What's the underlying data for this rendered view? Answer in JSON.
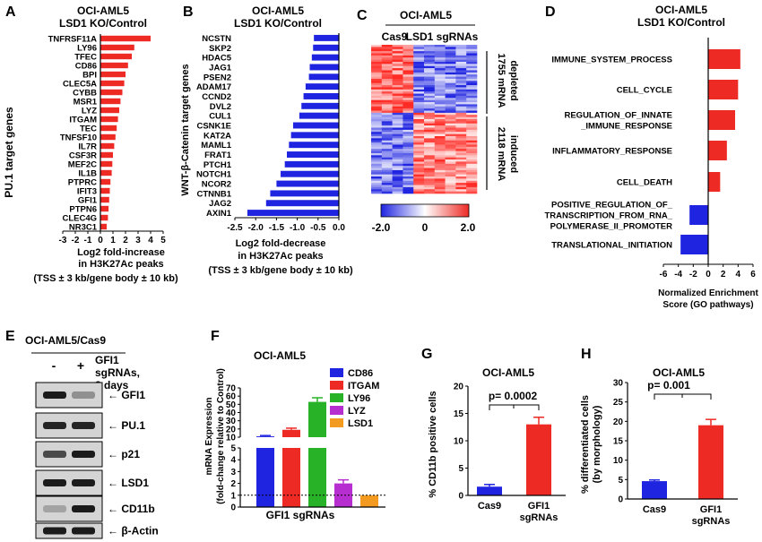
{
  "panel_letters": {
    "A": "A",
    "B": "B",
    "C": "C",
    "D": "D",
    "E": "E",
    "F": "F",
    "G": "G",
    "H": "H"
  },
  "colors": {
    "red": "#ee2a24",
    "blue": "#1f24e0",
    "green": "#27b227",
    "purple": "#b72ed0",
    "orange": "#f39a21",
    "black": "#000000"
  },
  "panelA": {
    "title1": "OCI-AML5",
    "title2": "LSD1 KO/Control",
    "ylabel": "PU.1 target genes",
    "xlabel1": "Log2 fold-increase",
    "xlabel2": "in H3K27Ac peaks",
    "xlabel3": "(TSS ± 3 kb/gene body ± 10 kb)",
    "ticks": [
      "-3",
      "-2",
      "-1",
      "0",
      "1",
      "2",
      "3",
      "4",
      "5"
    ]
  },
  "panelB": {
    "title1": "OCI-AML5",
    "title2": "LSD1 KO/Control",
    "ylabel": "WNT-β-Catenin target genes",
    "xlabel1": "Log2 fold-decrease",
    "xlabel2": "in H3K27Ac peaks",
    "xlabel3": "(TSS ± 3 kb/gene body ± 10 kb)",
    "ticks": [
      "-2.5",
      "-2.0",
      "-1.5",
      "-1.0",
      "-0.5",
      "0.0"
    ]
  },
  "panelC": {
    "title": "OCI-AML5",
    "col1": "Cas9",
    "col2": "LSD1 sgRNAs",
    "right1": "1755 mRNA",
    "right1b": "depleted",
    "right2": "2118 mRNA",
    "right2b": "induced",
    "scale_min": "-2.0",
    "scale_mid": "0",
    "scale_max": "2.0"
  },
  "panelD": {
    "title1": "OCI-AML5",
    "title2": "LSD1 KO/Control",
    "xlabel1": "Normalized Enrichment",
    "xlabel2": "Score (GO pathways)",
    "ticks": [
      "-6",
      "-4",
      "-2",
      "0",
      "2",
      "4",
      "6"
    ],
    "labels": [
      [
        "IMMUNE_SYSTEM_PROCESS"
      ],
      [
        "CELL_CYCLE"
      ],
      [
        "REGULATION_OF_INNATE",
        "_IMMUNE_RESPONSE"
      ],
      [
        "INFLAMMATORY_RESPONSE"
      ],
      [
        "CELL_DEATH"
      ],
      [
        "POSITIVE_REGULATION_OF_",
        "TRANSCRIPTION_FROM_RNA_",
        "POLYMERASE_II_PROMOTER"
      ],
      [
        "TRANSLATIONAL_INITIATION"
      ]
    ]
  },
  "panelE": {
    "title": "OCI-AML5/Cas9",
    "minus": "-",
    "plus": "+",
    "cond1": "GFI1",
    "cond2": "sgRNAs,",
    "cond3": "8 days",
    "bands": [
      "GFI1",
      "PU.1",
      "p21",
      "LSD1",
      "CD11b",
      "β-Actin"
    ]
  },
  "panelF": {
    "title": "OCI-AML5",
    "ylabel1": "mRNA Expression",
    "ylabel2": "(fold-change relative to Control)",
    "xlabel": "GFI1 sgRNAs",
    "ticks_top": [
      "10",
      "20",
      "30",
      "40",
      "50",
      "60",
      "70"
    ],
    "ticks_bottom": [
      "0",
      "1",
      "2",
      "3",
      "4",
      "5"
    ],
    "legend": [
      "CD86",
      "ITGAM",
      "LY96",
      "LYZ",
      "LSD1"
    ]
  },
  "panelG": {
    "title": "OCI-AML5",
    "ylabel": "% CD11b positive cells",
    "pval": "p= 0.0002",
    "ticks": [
      "0",
      "5",
      "10",
      "15",
      "20"
    ],
    "cat1": "Cas9",
    "cat2a": "GFI1",
    "cat2b": "sgRNAs"
  },
  "panelH": {
    "title": "OCI-AML5",
    "ylabel1": "% differentiated cells",
    "ylabel2": "(by morphology)",
    "pval": "p= 0.001",
    "ticks": [
      "0",
      "5",
      "10",
      "15",
      "20",
      "25",
      "30"
    ],
    "cat1": "Cas9",
    "cat2a": "GFI1",
    "cat2b": "sgRNAs"
  },
  "chart_data": [
    {
      "type": "bar",
      "panel": "A",
      "orientation": "horizontal",
      "categories": [
        "TNFRSF11A",
        "LY96",
        "TFEC",
        "CD86",
        "BPI",
        "CLEC5A",
        "CYBB",
        "MSR1",
        "LYZ",
        "ITGAM",
        "TEC",
        "TNFSF10",
        "IL7R",
        "CSF3R",
        "MEF2C",
        "IL1B",
        "PTPRC",
        "IFIT3",
        "GFI1",
        "PTPN6",
        "CLEC4G",
        "NR3C1"
      ],
      "values": [
        4.0,
        2.7,
        2.5,
        2.2,
        2.0,
        1.9,
        1.75,
        1.6,
        1.5,
        1.4,
        1.3,
        1.2,
        1.1,
        1.0,
        0.95,
        0.9,
        0.8,
        0.75,
        0.7,
        0.65,
        0.6,
        0.5
      ],
      "xlabel": "Log2 fold-increase in H3K27Ac peaks",
      "ylabel": "PU.1 target genes",
      "xlim": [
        -3,
        5
      ]
    },
    {
      "type": "bar",
      "panel": "B",
      "orientation": "horizontal",
      "categories": [
        "NCSTN",
        "SKP2",
        "HDAC5",
        "JAG1",
        "PSEN2",
        "ADAM17",
        "CCND2",
        "DVL2",
        "CUL1",
        "CSNK1E",
        "KAT2A",
        "MAML1",
        "FRAT1",
        "PTCH1",
        "NOTCH1",
        "NCOR2",
        "CTNNB1",
        "JAG2",
        "AXIN1"
      ],
      "values": [
        -0.6,
        -0.62,
        -0.65,
        -0.7,
        -0.72,
        -0.8,
        -0.85,
        -0.9,
        -0.95,
        -1.1,
        -1.15,
        -1.2,
        -1.25,
        -1.3,
        -1.4,
        -1.5,
        -1.65,
        -1.75,
        -2.2
      ],
      "xlabel": "Log2 fold-decrease in H3K27Ac peaks",
      "ylabel": "WNT-β-Catenin target genes",
      "xlim": [
        -2.5,
        0
      ]
    },
    {
      "type": "heatmap",
      "panel": "C",
      "columns": [
        "Cas9",
        "LSD1 sgRNAs"
      ],
      "groups": [
        "1755 mRNA depleted",
        "2118 mRNA induced"
      ],
      "range": [
        -2.0,
        2.0
      ]
    },
    {
      "type": "bar",
      "panel": "D",
      "orientation": "horizontal",
      "categories": [
        "IMMUNE_SYSTEM_PROCESS",
        "CELL_CYCLE",
        "REGULATION_OF_INNATE_IMMUNE_RESPONSE",
        "INFLAMMATORY_RESPONSE",
        "CELL_DEATH",
        "POSITIVE_REGULATION_OF_TRANSCRIPTION_FROM_RNA_POLYMERASE_II_PROMOTER",
        "TRANSLATIONAL_INITIATION"
      ],
      "values": [
        4.3,
        4.0,
        3.6,
        2.5,
        1.6,
        -2.5,
        -3.7
      ],
      "xlabel": "Normalized Enrichment Score (GO pathways)",
      "xlim": [
        -6,
        6
      ]
    },
    {
      "type": "bar",
      "panel": "F",
      "categories": [
        "CD86",
        "ITGAM",
        "LY96",
        "LYZ",
        "LSD1"
      ],
      "values": [
        11,
        19,
        53,
        2.0,
        1.0
      ],
      "errors": [
        1,
        2,
        5,
        0.3,
        0
      ],
      "xlabel": "GFI1 sgRNAs",
      "ylabel": "mRNA Expression (fold-change relative to Control)"
    },
    {
      "type": "bar",
      "panel": "G",
      "categories": [
        "Cas9",
        "GFI1 sgRNAs"
      ],
      "values": [
        1.6,
        13
      ],
      "errors": [
        0.4,
        1.3
      ],
      "ylim": [
        0,
        20
      ],
      "ylabel": "% CD11b positive cells"
    },
    {
      "type": "bar",
      "panel": "H",
      "categories": [
        "Cas9",
        "GFI1 sgRNAs"
      ],
      "values": [
        4.6,
        19
      ],
      "errors": [
        0.3,
        1.5
      ],
      "ylim": [
        0,
        30
      ],
      "ylabel": "% differentiated cells (by morphology)"
    }
  ]
}
